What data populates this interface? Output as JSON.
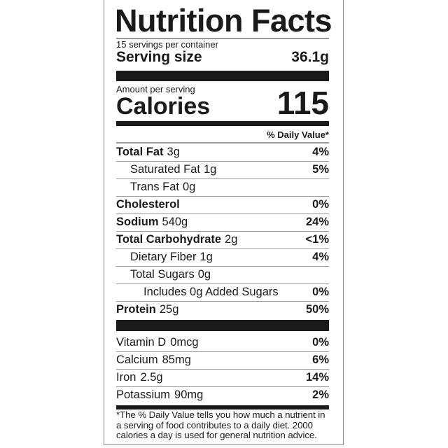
{
  "title": "Nutrition Facts",
  "servings_per_container": "15 servings per container",
  "serving_size_label": "Serving size",
  "serving_size_value": "36.1g",
  "amount_per_serving": "Amount per serving",
  "calories_label": "Calories",
  "calories_value": "115",
  "daily_value_header": "% Daily Value*",
  "nutrients": [
    {
      "name": "Total Fat",
      "amount": "3g",
      "dv": "4%"
    },
    {
      "name": "Saturated Fat",
      "amount": "1g",
      "dv": "5%"
    },
    {
      "name": "Trans Fat",
      "amount": "0g",
      "dv": ""
    },
    {
      "name": "Cholesterol",
      "amount": "",
      "dv": "0%"
    },
    {
      "name": "Sodium",
      "amount": "540g",
      "dv": "24%"
    },
    {
      "name": "Total Carbohydrate",
      "amount": "2g",
      "dv": "<1%"
    },
    {
      "name": "Dietary Fiber",
      "amount": "1g",
      "dv": "4%"
    },
    {
      "name": "Total Sugars",
      "amount": "0g",
      "dv": ""
    },
    {
      "name": "Includes 0g Added Sugars",
      "amount": "",
      "dv": "0%"
    },
    {
      "name": "Protein",
      "amount": "25g",
      "dv": "50%"
    }
  ],
  "vitamins": [
    {
      "name": "Vitamin D",
      "amount": "0mcg",
      "dv": "0%"
    },
    {
      "name": "Calcium",
      "amount": "85mg",
      "dv": "6%"
    },
    {
      "name": "Iron",
      "amount": "2.5g",
      "dv": "14%"
    },
    {
      "name": "Potassium",
      "amount": "90mg",
      "dv": "2%"
    }
  ],
  "footnote": "*The % Daily Value tells you how much a nutrient in a serving of food contributes to a daily diet. 2000 calories a day is used for general nutrition advice."
}
